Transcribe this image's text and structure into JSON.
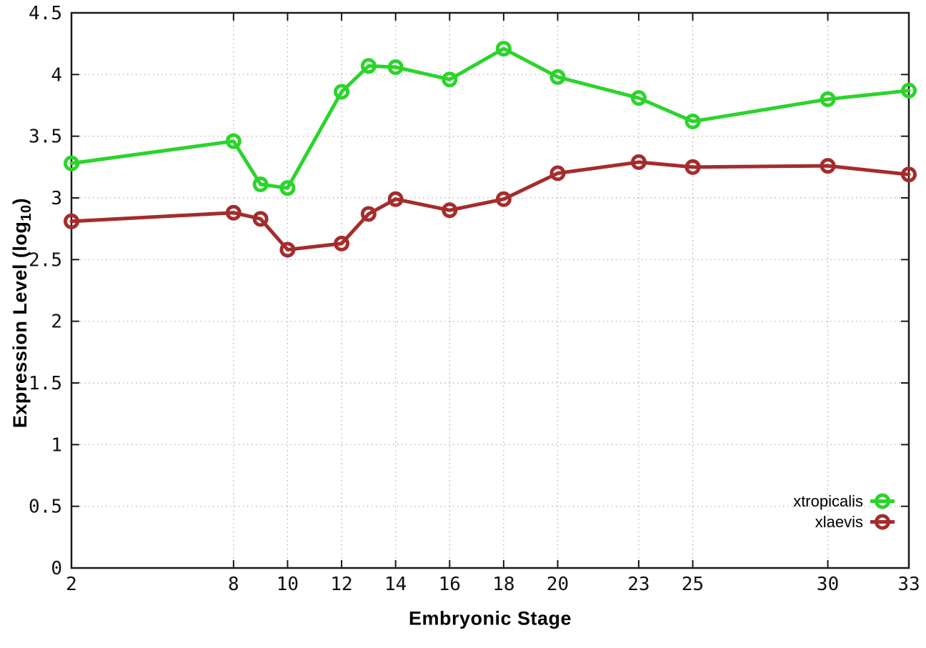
{
  "chart_data": {
    "type": "line",
    "title": "",
    "xlabel": "Embryonic Stage",
    "ylabel": "Expression Level (log10)",
    "ylabel_parts": {
      "pre": "Expression Level (log",
      "sub": "10",
      "post": ")"
    },
    "xlim": [
      2,
      33
    ],
    "ylim": [
      0,
      4.5
    ],
    "xticks": [
      2,
      8,
      10,
      12,
      14,
      16,
      18,
      20,
      23,
      25,
      30,
      33
    ],
    "yticks": [
      0,
      0.5,
      1,
      1.5,
      2,
      2.5,
      3,
      3.5,
      4,
      4.5
    ],
    "grid": true,
    "marker": "open-circle",
    "legend_position": "inside-bottom-right",
    "x": [
      2,
      8,
      9,
      10,
      12,
      13,
      14,
      16,
      18,
      20,
      23,
      25,
      30,
      33
    ],
    "series": [
      {
        "name": "xtropicalis",
        "color": "#2bd42b",
        "values": [
          3.28,
          3.46,
          3.11,
          3.08,
          3.86,
          4.07,
          4.06,
          3.96,
          4.21,
          3.98,
          3.81,
          3.62,
          3.8,
          3.87
        ]
      },
      {
        "name": "xlaevis",
        "color": "#a52c2c",
        "values": [
          2.81,
          2.88,
          2.83,
          2.58,
          2.63,
          2.87,
          2.99,
          2.9,
          2.99,
          3.2,
          3.29,
          3.25,
          3.26,
          3.19
        ]
      }
    ],
    "colors": {
      "grid": "#aaaaaa",
      "border": "#1a1a1a",
      "tick_text": "#101010"
    }
  }
}
